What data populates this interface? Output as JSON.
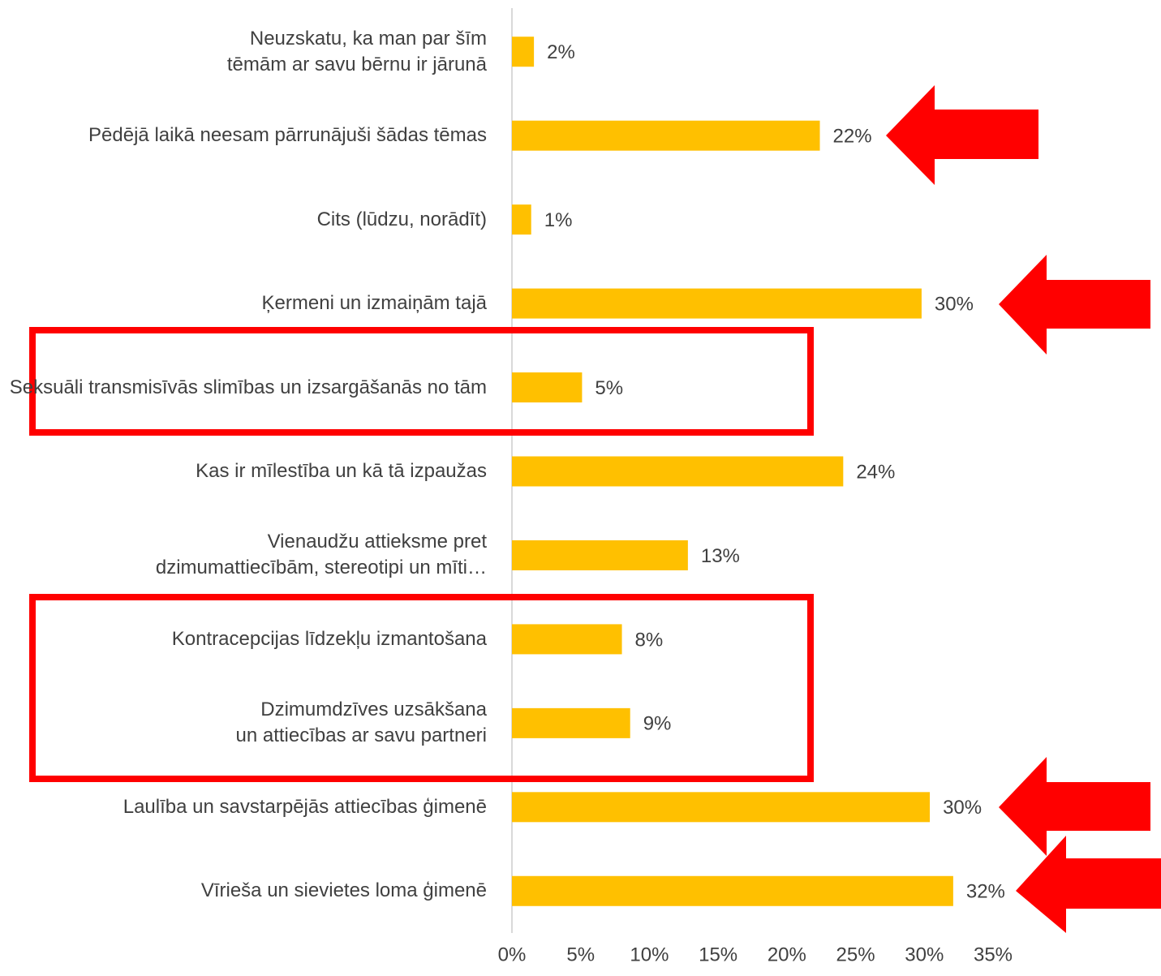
{
  "chart_data": {
    "type": "barh",
    "categories": [
      "Neuzskatu, ka man par šīm tēmām ar savu bērnu ir jārunā",
      "Pēdējā laikā neesam pārrunājuši šādas tēmas",
      "Cits (lūdzu, norādīt)",
      "Ķermeni un izmaiņām tajā",
      "Seksuāli transmisīvās slimības un izsargāšanās no tām",
      "Kas ir mīlestība un kā tā izpaužas",
      "Vienaudžu attieksme pret dzimumattiecībām, stereotipi un mīti…",
      "Kontracepcijas līdzekļu izmantošana",
      "Dzimumdzīves uzsākšana un attiecības ar savu partneri",
      "Laulība un savstarpējās attiecības ģimenē",
      "Vīrieša un sievietes loma ģimenē"
    ],
    "values": [
      1.6,
      22.4,
      1.4,
      29.8,
      5.1,
      24.1,
      12.8,
      8.0,
      8.6,
      30.4,
      32.1
    ],
    "value_labels": [
      "2%",
      "22%",
      "1%",
      "30%",
      "5%",
      "24%",
      "13%",
      "8%",
      "9%",
      "30%",
      "32%"
    ],
    "color": "#ffc000",
    "xlim": [
      0,
      35
    ],
    "xticks": [
      {
        "value": 0,
        "label": "0%"
      },
      {
        "value": 5,
        "label": "5%"
      },
      {
        "value": 10,
        "label": "10%"
      },
      {
        "value": 15,
        "label": "15%"
      },
      {
        "value": 20,
        "label": "20%"
      },
      {
        "value": 25,
        "label": "25%"
      },
      {
        "value": 30,
        "label": "30%"
      },
      {
        "value": 35,
        "label": "35%"
      }
    ],
    "grid": false
  }
}
